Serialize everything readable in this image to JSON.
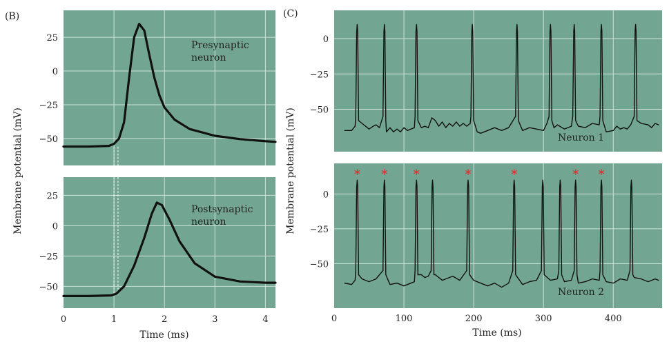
{
  "colors": {
    "panel_bg": "#72a592",
    "grid": "#cfe2d8",
    "trace": "#111111",
    "spike_marker": "#e03030",
    "text": "#222222"
  },
  "panel_labels": {
    "b": "(B)",
    "c": "(C)"
  },
  "chart_data": [
    {
      "type": "line",
      "id": "B-top",
      "annotation": "Presynaptic\nneuron",
      "xlim": [
        0,
        4.2
      ],
      "ylim": [
        -70,
        45
      ],
      "yticks": [
        25,
        0,
        -25,
        -50
      ],
      "ylabel": "Membrane potential (mV)",
      "grid": true,
      "series": [
        {
          "x": [
            0,
            0.5,
            0.9,
            1.0,
            1.1,
            1.2,
            1.3,
            1.4,
            1.5,
            1.6,
            1.7,
            1.8,
            1.9,
            2.0,
            2.2,
            2.5,
            3.0,
            3.5,
            4.0,
            4.2
          ],
          "y": [
            -56,
            -56,
            -55.5,
            -54,
            -50,
            -38,
            -5,
            25,
            35,
            30,
            12,
            -5,
            -18,
            -27,
            -36,
            -43,
            -48,
            -50.5,
            -52,
            -52.5
          ]
        }
      ]
    },
    {
      "type": "line",
      "id": "B-bottom",
      "annotation": "Postsynaptic\nneuron",
      "xlim": [
        0,
        4.2
      ],
      "ylim": [
        -68,
        40
      ],
      "yticks": [
        25,
        0,
        -25,
        -50
      ],
      "xticks": [
        0,
        1,
        2,
        3,
        4
      ],
      "xlabel": "Time (ms)",
      "grid": true,
      "series": [
        {
          "x": [
            0,
            0.5,
            0.95,
            1.05,
            1.2,
            1.4,
            1.6,
            1.75,
            1.85,
            1.95,
            2.1,
            2.3,
            2.6,
            3.0,
            3.5,
            4.0,
            4.2
          ],
          "y": [
            -58,
            -58,
            -57.5,
            -56,
            -50,
            -33,
            -10,
            10,
            19,
            17,
            5,
            -13,
            -31,
            -42,
            -46,
            -47,
            -47
          ]
        }
      ]
    },
    {
      "type": "line",
      "id": "C-top",
      "annotation": "Neuron 1",
      "xlim": [
        0,
        470
      ],
      "ylim": [
        -80,
        20
      ],
      "yticks": [
        0,
        -25,
        -50
      ],
      "ylabel": "Membrane potential (mV)",
      "grid": true,
      "baseline": [
        [
          15,
          -65
        ],
        [
          25,
          -65
        ],
        [
          30,
          -62
        ],
        [
          40,
          -60
        ],
        [
          50,
          -64
        ],
        [
          56,
          -62
        ],
        [
          60,
          -61
        ],
        [
          65,
          -63
        ],
        [
          75,
          -66
        ],
        [
          80,
          -63
        ],
        [
          85,
          -66
        ],
        [
          90,
          -64
        ],
        [
          95,
          -66
        ],
        [
          100,
          -63
        ],
        [
          105,
          -65
        ],
        [
          110,
          -64
        ],
        [
          115,
          -63
        ],
        [
          120,
          -62
        ],
        [
          125,
          -63
        ],
        [
          130,
          -62
        ],
        [
          135,
          -63
        ],
        [
          140,
          -56
        ],
        [
          145,
          -58
        ],
        [
          150,
          -62
        ],
        [
          155,
          -59
        ],
        [
          160,
          -63
        ],
        [
          165,
          -60
        ],
        [
          170,
          -62
        ],
        [
          175,
          -59
        ],
        [
          180,
          -62
        ],
        [
          185,
          -60
        ],
        [
          190,
          -62
        ],
        [
          195,
          -60
        ],
        [
          200,
          -64
        ],
        [
          205,
          -66
        ],
        [
          210,
          -67
        ],
        [
          220,
          -65
        ],
        [
          230,
          -63
        ],
        [
          240,
          -65
        ],
        [
          250,
          -63
        ],
        [
          260,
          -66
        ],
        [
          270,
          -65
        ],
        [
          280,
          -63
        ],
        [
          290,
          -64
        ],
        [
          300,
          -65
        ],
        [
          305,
          -60
        ],
        [
          310,
          -62
        ],
        [
          315,
          -63
        ],
        [
          320,
          -61
        ],
        [
          330,
          -64
        ],
        [
          340,
          -62
        ],
        [
          345,
          -60
        ],
        [
          350,
          -62
        ],
        [
          360,
          -63
        ],
        [
          370,
          -60
        ],
        [
          380,
          -61
        ],
        [
          390,
          -66
        ],
        [
          400,
          -65
        ],
        [
          405,
          -62
        ],
        [
          410,
          -64
        ],
        [
          415,
          -63
        ],
        [
          420,
          -64
        ],
        [
          425,
          -61
        ],
        [
          430,
          -62
        ],
        [
          440,
          -60
        ],
        [
          450,
          -61
        ],
        [
          455,
          -63
        ],
        [
          460,
          -60
        ],
        [
          465,
          -61
        ]
      ],
      "spikes": [
        33,
        72,
        118,
        198,
        262,
        310,
        344,
        383,
        432
      ]
    },
    {
      "type": "line",
      "id": "C-bottom",
      "annotation": "Neuron 2",
      "xlim": [
        0,
        470
      ],
      "ylim": [
        -82,
        22
      ],
      "yticks": [
        0,
        -25,
        -50
      ],
      "xticks": [
        0,
        100,
        200,
        300,
        400
      ],
      "xlabel": "Time (ms)",
      "grid": true,
      "baseline": [
        [
          15,
          -64
        ],
        [
          25,
          -65
        ],
        [
          30,
          -62
        ],
        [
          40,
          -61
        ],
        [
          50,
          -63
        ],
        [
          60,
          -61
        ],
        [
          70,
          -63
        ],
        [
          80,
          -65
        ],
        [
          90,
          -64
        ],
        [
          100,
          -66
        ],
        [
          110,
          -64
        ],
        [
          115,
          -63
        ],
        [
          120,
          -57
        ],
        [
          125,
          -58
        ],
        [
          130,
          -60
        ],
        [
          135,
          -59
        ],
        [
          140,
          -61
        ],
        [
          145,
          -58
        ],
        [
          150,
          -60
        ],
        [
          155,
          -62
        ],
        [
          160,
          -61
        ],
        [
          170,
          -59
        ],
        [
          180,
          -62
        ],
        [
          190,
          -60
        ],
        [
          200,
          -62
        ],
        [
          210,
          -64
        ],
        [
          220,
          -66
        ],
        [
          230,
          -64
        ],
        [
          240,
          -67
        ],
        [
          250,
          -64
        ],
        [
          260,
          -63
        ],
        [
          270,
          -65
        ],
        [
          280,
          -63
        ],
        [
          290,
          -62
        ],
        [
          300,
          -64
        ],
        [
          310,
          -62
        ],
        [
          320,
          -61
        ],
        [
          330,
          -63
        ],
        [
          340,
          -62
        ],
        [
          350,
          -64
        ],
        [
          360,
          -63
        ],
        [
          370,
          -61
        ],
        [
          380,
          -62
        ],
        [
          390,
          -63
        ],
        [
          400,
          -64
        ],
        [
          410,
          -61
        ],
        [
          420,
          -62
        ],
        [
          430,
          -60
        ],
        [
          440,
          -61
        ],
        [
          450,
          -63
        ],
        [
          460,
          -61
        ],
        [
          465,
          -62
        ]
      ],
      "spikes": [
        33,
        72,
        118,
        141,
        192,
        258,
        299,
        324,
        346,
        383,
        426
      ],
      "marked_spikes": [
        33,
        72,
        118,
        192,
        258,
        346,
        383
      ]
    }
  ]
}
